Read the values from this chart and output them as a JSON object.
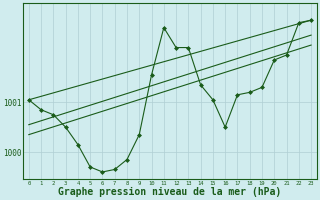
{
  "background_color": "#d0ecee",
  "grid_color": "#b0cfd4",
  "line_color": "#1a5c1a",
  "xlabel": "Graphe pression niveau de la mer (hPa)",
  "xlabel_fontsize": 7,
  "xlim": [
    -0.5,
    23.5
  ],
  "ylim": [
    999.45,
    1003.0
  ],
  "yticks": [
    1000,
    1001
  ],
  "xticks": [
    0,
    1,
    2,
    3,
    4,
    5,
    6,
    7,
    8,
    9,
    10,
    11,
    12,
    13,
    14,
    15,
    16,
    17,
    18,
    19,
    20,
    21,
    22,
    23
  ],
  "trend1_x": [
    0,
    23
  ],
  "trend1_y": [
    1001.05,
    1002.65
  ],
  "trend2_x": [
    0,
    23
  ],
  "trend2_y": [
    1000.55,
    1002.35
  ],
  "trend3_x": [
    0,
    23
  ],
  "trend3_y": [
    1000.35,
    1002.15
  ],
  "main_x": [
    0,
    1,
    2,
    3,
    4,
    5,
    6,
    7,
    8,
    9,
    10,
    11,
    12,
    13,
    14,
    15,
    16,
    17,
    18,
    19,
    20,
    21,
    22,
    23
  ],
  "main_y": [
    1001.05,
    1000.85,
    1000.75,
    1000.5,
    1000.15,
    999.7,
    999.6,
    999.65,
    999.85,
    1000.35,
    1001.55,
    1002.5,
    1002.1,
    1002.1,
    1001.35,
    1001.05,
    1000.5,
    1001.15,
    1001.2,
    1001.3,
    1001.85,
    1001.95,
    1002.6,
    1002.65
  ]
}
